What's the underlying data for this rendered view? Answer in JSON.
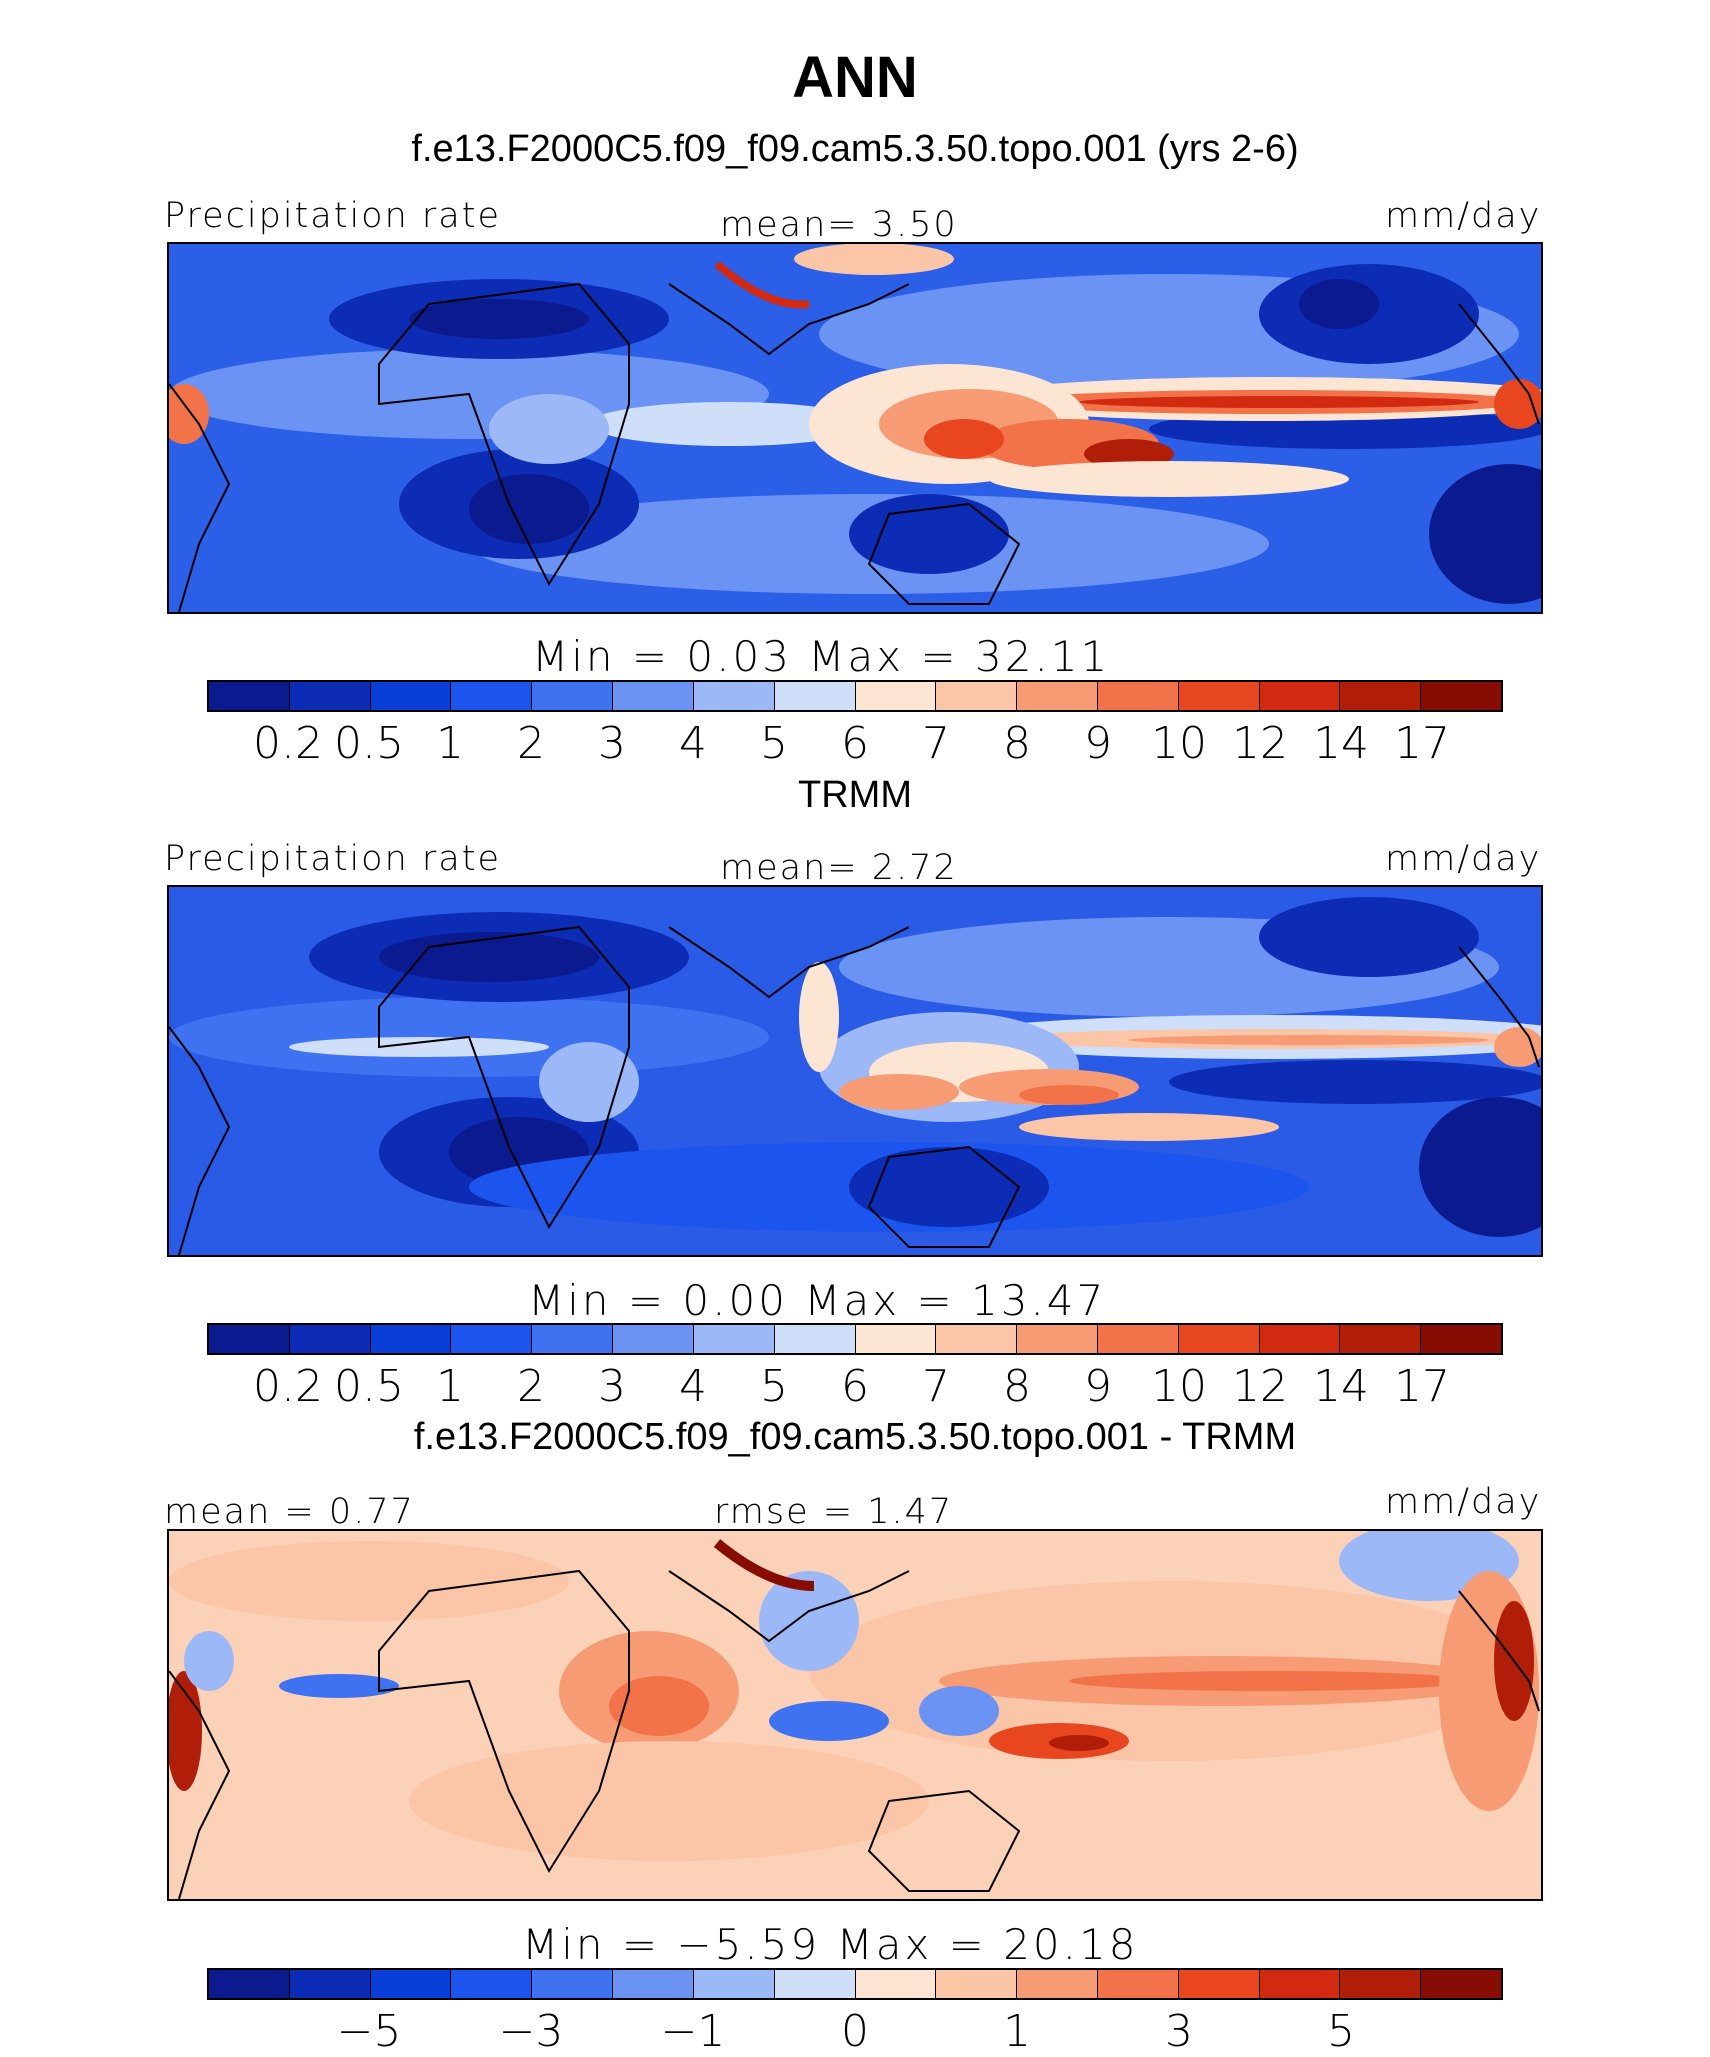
{
  "title": "ANN",
  "panels": [
    {
      "id": "model",
      "heading": "f.e13.F2000C5.f09_f09.cam5.3.50.topo.001 (yrs 2-6)",
      "left_label": "Precipitation rate",
      "center_label": "mean=   3.50",
      "right_label": "mm/day",
      "minmax": "Min  =    0.03  Max  =   32.11",
      "ticks": [
        "0.2",
        "0.5",
        "1",
        "2",
        "3",
        "4",
        "5",
        "6",
        "7",
        "8",
        "9",
        "10",
        "12",
        "14",
        "17"
      ]
    },
    {
      "id": "obs",
      "heading": "TRMM",
      "left_label": "Precipitation rate",
      "center_label": "mean=   2.72",
      "right_label": "mm/day",
      "minmax": "Min  =    0.00  Max  =   13.47",
      "ticks": [
        "0.2",
        "0.5",
        "1",
        "2",
        "3",
        "4",
        "5",
        "6",
        "7",
        "8",
        "9",
        "10",
        "12",
        "14",
        "17"
      ]
    },
    {
      "id": "diff",
      "heading": "f.e13.F2000C5.f09_f09.cam5.3.50.topo.001 - TRMM",
      "left_label": "mean  =   0.77",
      "center_label": "rmse  =   1.47",
      "right_label": "mm/day",
      "minmax": "Min  =   −5.59  Max  =   20.18",
      "ticks": [
        "−5",
        "−3",
        "−1",
        "0",
        "1",
        "3",
        "5"
      ]
    }
  ],
  "colors": {
    "colorbar": [
      "#0b1a8f",
      "#0c2cb6",
      "#0a3ed8",
      "#1c55ee",
      "#3e72f0",
      "#6b93f3",
      "#9db8f6",
      "#cfdff9",
      "#fde5d4",
      "#fbc5a7",
      "#f79b74",
      "#f2724a",
      "#e8461f",
      "#d22a10",
      "#b01d08",
      "#870c04"
    ],
    "map_base_model": "#2b5fe8",
    "map_base_obs": "#2a5be6",
    "map_base_diff": "#fbd2b8"
  }
}
